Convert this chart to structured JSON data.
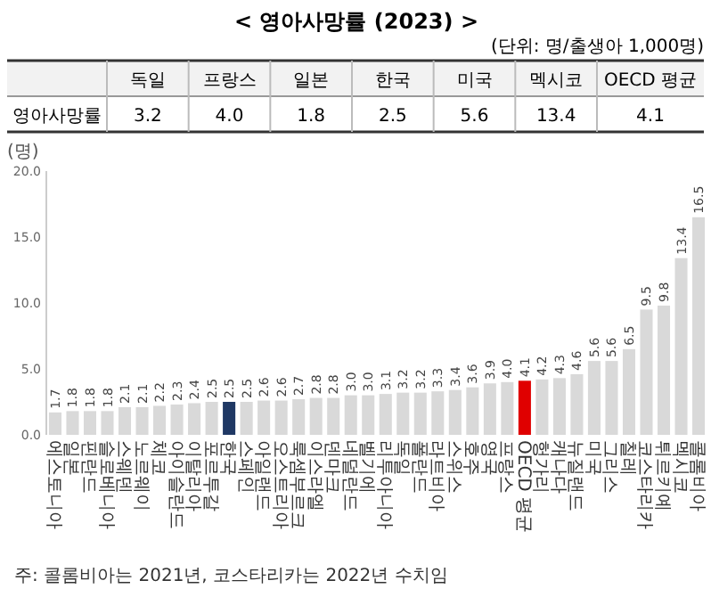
{
  "chart_data": [
    {
      "type": "other",
      "title": "< 영아사망률 (2023) >",
      "subtitle": "(단위: 명/출생아 1,000명)",
      "ylabel": "영아사망률",
      "categories": [
        "독일",
        "프랑스",
        "일본",
        "한국",
        "미국",
        "멕시코",
        "OECD 평균"
      ],
      "values": [
        3.2,
        4.0,
        1.8,
        2.5,
        5.6,
        13.4,
        4.1
      ],
      "value_labels": [
        "3.2",
        "4.0",
        "1.8",
        "2.5",
        "5.6",
        "13.4",
        "4.1"
      ]
    },
    {
      "type": "bar",
      "ylabel": "(명)",
      "categories": [
        "에스토니아",
        "일본",
        "핀란드",
        "슬로베니아",
        "스웨덴",
        "노르웨이",
        "체코",
        "아이슬란드",
        "이탈리아",
        "포르투갈",
        "한국",
        "스페인",
        "아일랜드",
        "오스트리아",
        "룩셈부르크",
        "이스라엘",
        "덴마크",
        "네덜란드",
        "벨기에",
        "리투아니아",
        "독일",
        "폴란드",
        "라트비아",
        "스위스",
        "호주",
        "영국",
        "프랑스",
        "OECD 평균",
        "헝가리",
        "캐나다",
        "뉴질랜드",
        "미국",
        "그리스",
        "칠레",
        "코스타리카",
        "튀르키예",
        "멕시코",
        "콜롬비아"
      ],
      "values": [
        1.7,
        1.8,
        1.8,
        1.8,
        2.1,
        2.1,
        2.2,
        2.3,
        2.4,
        2.5,
        2.5,
        2.5,
        2.6,
        2.6,
        2.7,
        2.8,
        2.8,
        3.0,
        3.0,
        3.1,
        3.2,
        3.2,
        3.3,
        3.4,
        3.6,
        3.9,
        4.0,
        4.1,
        4.2,
        4.3,
        4.6,
        5.6,
        5.6,
        6.5,
        9.5,
        9.8,
        13.4,
        16.5
      ],
      "colors": [
        "#d9d9d9",
        "#d9d9d9",
        "#d9d9d9",
        "#d9d9d9",
        "#d9d9d9",
        "#d9d9d9",
        "#d9d9d9",
        "#d9d9d9",
        "#d9d9d9",
        "#d9d9d9",
        "#1f3864",
        "#d9d9d9",
        "#d9d9d9",
        "#d9d9d9",
        "#d9d9d9",
        "#d9d9d9",
        "#d9d9d9",
        "#d9d9d9",
        "#d9d9d9",
        "#d9d9d9",
        "#d9d9d9",
        "#d9d9d9",
        "#d9d9d9",
        "#d9d9d9",
        "#d9d9d9",
        "#d9d9d9",
        "#d9d9d9",
        "#e00000",
        "#d9d9d9",
        "#d9d9d9",
        "#d9d9d9",
        "#d9d9d9",
        "#d9d9d9",
        "#d9d9d9",
        "#d9d9d9",
        "#d9d9d9",
        "#d9d9d9",
        "#d9d9d9"
      ],
      "ylim": [
        0,
        20
      ],
      "yticks": [
        {
          "value": 0,
          "label": "0.0"
        },
        {
          "value": 5,
          "label": "5.0"
        },
        {
          "value": 10,
          "label": "10.0"
        },
        {
          "value": 15,
          "label": "15.0"
        },
        {
          "value": 20,
          "label": "20.0"
        }
      ],
      "value_labels": [
        "1.7",
        "1.8",
        "1.8",
        "1.8",
        "2.1",
        "2.1",
        "2.2",
        "2.3",
        "2.4",
        "2.5",
        "2.5",
        "2.5",
        "2.6",
        "2.6",
        "2.7",
        "2.8",
        "2.8",
        "3.0",
        "3.0",
        "3.1",
        "3.2",
        "3.2",
        "3.3",
        "3.4",
        "3.6",
        "3.9",
        "4.0",
        "4.1",
        "4.2",
        "4.3",
        "4.6",
        "5.6",
        "5.6",
        "6.5",
        "9.5",
        "9.8",
        "13.4",
        "16.5"
      ],
      "grid": false,
      "annotations": [
        "주: 콜롬비아는 2021년, 코스타리카는 2022년 수치임"
      ]
    }
  ]
}
